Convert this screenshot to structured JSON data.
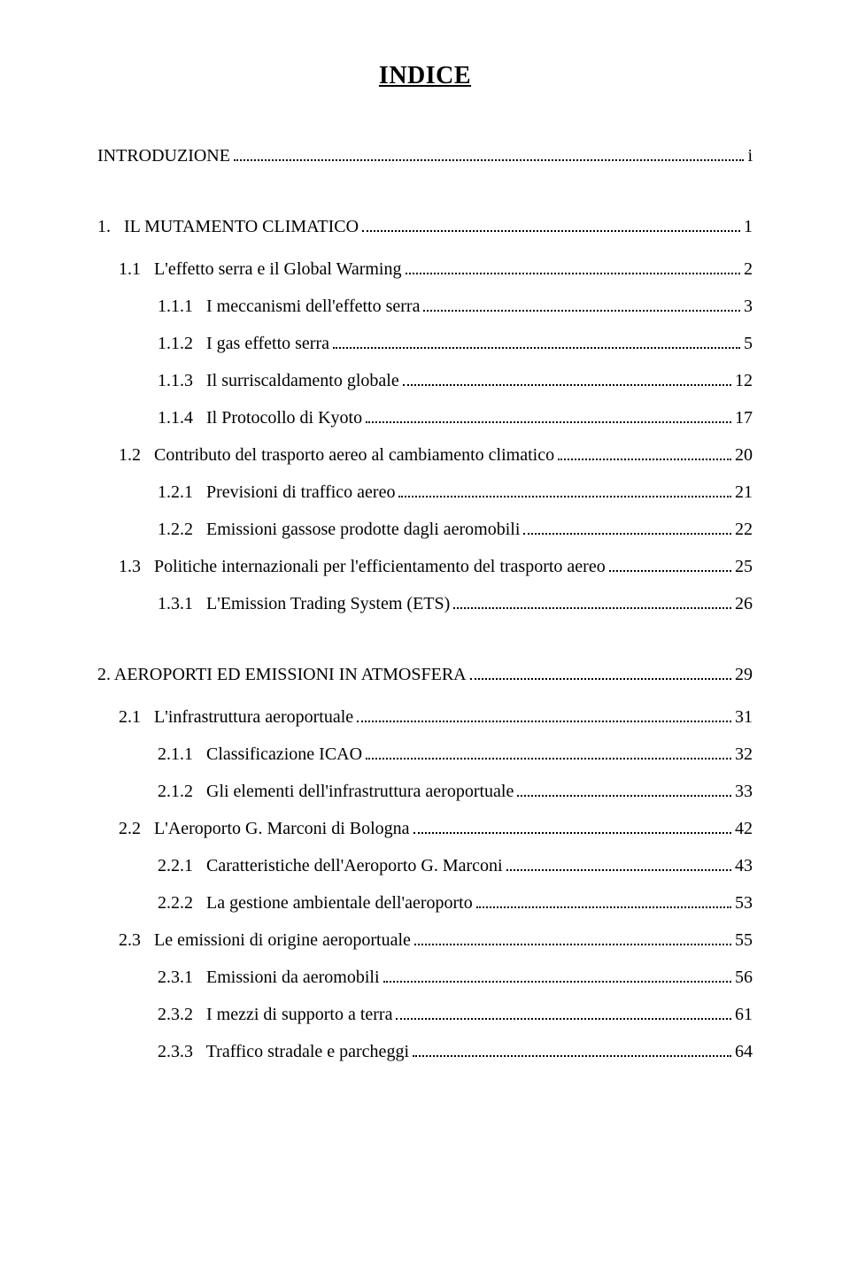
{
  "title": "INDICE",
  "entries": [
    {
      "level": 0,
      "label": "INTRODUZIONE",
      "page": "i",
      "chapter_gap": false
    },
    {
      "level": 0,
      "label": "1.   IL MUTAMENTO CLIMATICO",
      "page": "1",
      "chapter_gap": true
    },
    {
      "level": 1,
      "label": "1.1   L'effetto serra e il Global Warming",
      "page": "2",
      "chapter_gap": false
    },
    {
      "level": 2,
      "label": "1.1.1   I meccanismi dell'effetto serra",
      "page": "3",
      "chapter_gap": false
    },
    {
      "level": 2,
      "label": "1.1.2   I gas effetto serra",
      "page": "5",
      "chapter_gap": false
    },
    {
      "level": 2,
      "label": "1.1.3   Il surriscaldamento globale",
      "page": "12",
      "chapter_gap": false
    },
    {
      "level": 2,
      "label": "1.1.4   Il Protocollo di Kyoto",
      "page": "17",
      "chapter_gap": false
    },
    {
      "level": 1,
      "label": "1.2   Contributo del trasporto aereo al cambiamento climatico",
      "page": "20",
      "chapter_gap": false
    },
    {
      "level": 2,
      "label": "1.2.1   Previsioni di traffico aereo",
      "page": "21",
      "chapter_gap": false
    },
    {
      "level": 2,
      "label": "1.2.2   Emissioni gassose prodotte dagli aeromobili",
      "page": "22",
      "chapter_gap": false
    },
    {
      "level": 1,
      "label": "1.3   Politiche internazionali per l'efficientamento del trasporto aereo",
      "page": "25",
      "chapter_gap": false
    },
    {
      "level": 2,
      "label": "1.3.1   L'Emission Trading System (ETS)",
      "page": "26",
      "chapter_gap": false
    },
    {
      "level": 0,
      "label": "2. AEROPORTI ED EMISSIONI IN ATMOSFERA",
      "page": "29",
      "chapter_gap": true
    },
    {
      "level": 1,
      "label": "2.1   L'infrastruttura aeroportuale",
      "page": "31",
      "chapter_gap": false
    },
    {
      "level": 2,
      "label": "2.1.1   Classificazione ICAO",
      "page": "32",
      "chapter_gap": false
    },
    {
      "level": 2,
      "label": "2.1.2   Gli elementi dell'infrastruttura aeroportuale",
      "page": "33",
      "chapter_gap": false
    },
    {
      "level": 1,
      "label": "2.2   L'Aeroporto G. Marconi di Bologna",
      "page": "42",
      "chapter_gap": false
    },
    {
      "level": 2,
      "label": "2.2.1   Caratteristiche dell'Aeroporto G. Marconi",
      "page": "43",
      "chapter_gap": false
    },
    {
      "level": 2,
      "label": "2.2.2   La gestione ambientale dell'aeroporto",
      "page": "53",
      "chapter_gap": false
    },
    {
      "level": 1,
      "label": "2.3   Le emissioni di origine aeroportuale",
      "page": "55",
      "chapter_gap": false
    },
    {
      "level": 2,
      "label": "2.3.1   Emissioni da aeromobili",
      "page": "56",
      "chapter_gap": false
    },
    {
      "level": 2,
      "label": "2.3.2   I mezzi di supporto a terra",
      "page": "61",
      "chapter_gap": false
    },
    {
      "level": 2,
      "label": "2.3.3   Traffico stradale e parcheggi",
      "page": "64",
      "chapter_gap": false
    }
  ],
  "style": {
    "background_color": "#ffffff",
    "text_color": "#000000",
    "font_family": "Times New Roman",
    "title_fontsize": 28,
    "body_fontsize": 20,
    "indent_level_0": 0,
    "indent_level_1": 24,
    "indent_level_2": 68
  }
}
